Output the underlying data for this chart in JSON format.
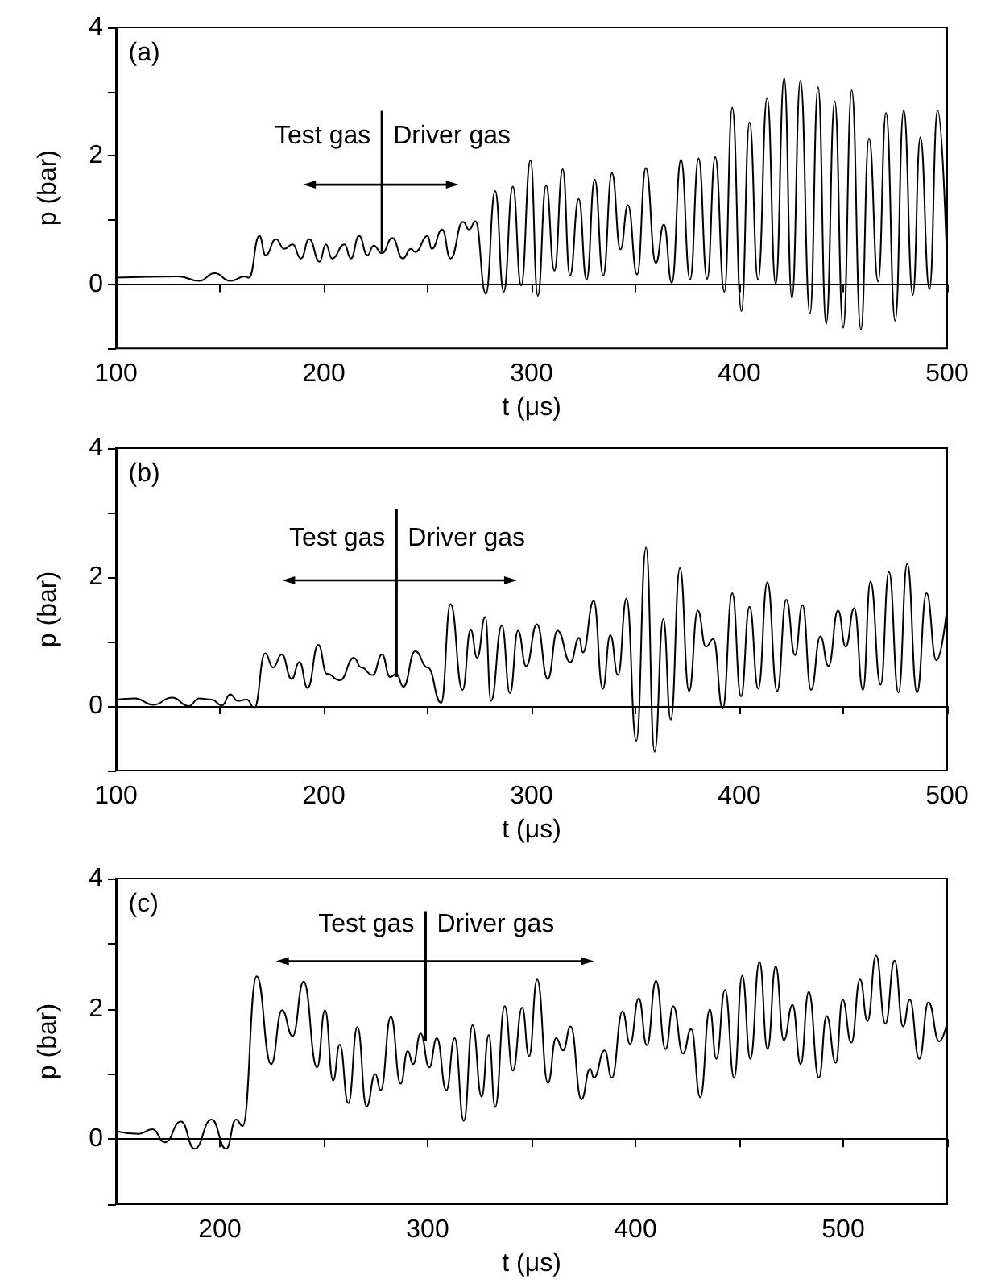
{
  "chart_data": [
    {
      "type": "line",
      "xlabel": "t (μs)",
      "ylabel": "p (bar)",
      "marker": "none",
      "annotations": [
        "(a)",
        {
          "text": "Test gas",
          "x": 228,
          "y": 0.5
        },
        {
          "text": "Driver gas",
          "x": 228,
          "y": 0.5
        }
      ],
      "xlim": [
        100,
        500
      ],
      "ylim": [
        -1,
        4
      ],
      "xticks": [
        100,
        {
          "value": 150,
          "label": null
        },
        200,
        {
          "value": 250,
          "label": null
        },
        300,
        {
          "value": 350,
          "label": null
        },
        400,
        {
          "value": 450,
          "label": null
        },
        500
      ],
      "yticks": [
        {
          "value": -1,
          "label": null
        },
        0,
        {
          "value": 1,
          "label": null
        },
        2,
        {
          "value": 3,
          "label": null
        },
        4
      ],
      "series": [
        {
          "color": "#000000",
          "x": [
            100,
            130,
            140,
            147.5,
            155,
            162,
            164,
            169,
            172,
            177,
            181,
            185,
            189,
            193,
            198,
            201,
            204,
            210,
            213,
            217,
            221,
            224,
            228,
            233,
            238,
            242,
            244,
            250,
            252,
            257,
            261,
            267,
            270,
            273,
            278,
            282.5,
            286.6,
            291,
            295,
            299.5,
            303,
            307,
            311,
            315,
            318.5,
            322.7,
            326.5,
            330.4,
            334.5,
            338.7,
            342.8,
            346.4,
            350.8,
            355,
            359.8,
            363.7,
            367.5,
            371.9,
            376.3,
            380.4,
            384.5,
            388.4,
            392.8,
            396.6,
            401,
            404.9,
            409,
            413.4,
            417.5,
            421.6,
            425.3,
            429.4,
            434,
            437.9,
            441.8,
            445.9,
            450,
            454.1,
            458.5,
            462.4,
            466.8,
            470.6,
            475,
            479.1,
            483.5,
            487.1,
            491.5,
            495.4,
            500
          ],
          "values": [
            0.1,
            0.12,
            0.05,
            0.17,
            0.05,
            0.12,
            0.1,
            0.75,
            0.45,
            0.7,
            0.55,
            0.62,
            0.4,
            0.7,
            0.35,
            0.62,
            0.4,
            0.62,
            0.4,
            0.75,
            0.45,
            0.6,
            0.48,
            0.72,
            0.4,
            0.55,
            0.5,
            0.75,
            0.55,
            0.85,
            0.4,
            0.97,
            0.85,
            0.98,
            -0.15,
            1.45,
            -0.12,
            1.52,
            -0.02,
            1.93,
            -0.18,
            1.54,
            0.21,
            1.79,
            0.13,
            1.33,
            0.07,
            1.63,
            0.13,
            1.73,
            0.54,
            1.23,
            0.15,
            1.81,
            0.33,
            0.93,
            0.02,
            1.94,
            0.07,
            1.96,
            0.08,
            1.98,
            -0.12,
            2.75,
            -0.42,
            2.52,
            0.07,
            2.9,
            0,
            3.21,
            -0.22,
            3.17,
            -0.46,
            3.07,
            -0.62,
            2.85,
            -0.68,
            3.02,
            -0.71,
            2.27,
            0.04,
            2.67,
            -0.57,
            2.71,
            -0.17,
            2.29,
            -0.08,
            2.71,
            0.25
          ]
        }
      ]
    },
    {
      "type": "line",
      "xlabel": "t (μs)",
      "ylabel": "p (bar)",
      "marker": "none",
      "annotations": [
        "(b)",
        {
          "text": "Test gas",
          "x": 235,
          "y": 0.45
        },
        {
          "text": "Driver gas",
          "x": 235,
          "y": 0.45
        }
      ],
      "xlim": [
        100,
        500
      ],
      "ylim": [
        -1,
        4
      ],
      "xticks": [
        100,
        {
          "value": 150,
          "label": null
        },
        200,
        {
          "value": 250,
          "label": null
        },
        300,
        {
          "value": 350,
          "label": null
        },
        400,
        {
          "value": 450,
          "label": null
        },
        500
      ],
      "yticks": [
        {
          "value": -1,
          "label": null
        },
        0,
        {
          "value": 1,
          "label": null
        },
        2,
        {
          "value": 3,
          "label": null
        },
        4
      ],
      "series": [
        {
          "color": "#000000",
          "x": [
            100,
            109,
            118,
            127,
            135,
            140,
            146,
            151,
            155,
            158.5,
            163,
            166.6,
            171.8,
            175.6,
            179.8,
            184.5,
            188.3,
            192.2,
            197.4,
            201.5,
            207.8,
            214.5,
            218,
            223.6,
            228,
            231.9,
            235,
            238.3,
            244,
            250,
            256.5,
            261,
            266.8,
            270.7,
            273.8,
            277.7,
            280.5,
            285.7,
            289.6,
            293.5,
            297.4,
            302.6,
            307.8,
            312.5,
            318.7,
            322.9,
            324.7,
            329.9,
            334.3,
            337.9,
            341.6,
            345.7,
            350.4,
            355.1,
            359.2,
            363.4,
            367,
            371.4,
            375.8,
            380,
            383.9,
            387.5,
            392,
            396.6,
            400.8,
            404.9,
            409.1,
            413.5,
            418.2,
            422.6,
            426.8,
            430.4,
            434.5,
            439,
            442.9,
            447.5,
            451.2,
            455.3,
            459.5,
            463.1,
            468,
            472,
            476.6,
            480.8,
            485.5,
            490.1,
            494.8,
            500
          ],
          "values": [
            0.1,
            0.12,
            0.02,
            0.13,
            0,
            0.12,
            0.1,
            0.01,
            0.18,
            0.08,
            0.1,
            -0.03,
            0.82,
            0.6,
            0.8,
            0.42,
            0.68,
            0.28,
            0.95,
            0.5,
            0.4,
            0.75,
            0.6,
            0.48,
            0.8,
            0.45,
            0.5,
            0.3,
            0.85,
            0.6,
            0.05,
            1.58,
            0.25,
            1.18,
            0.75,
            1.38,
            0.08,
            1.25,
            0.2,
            1.17,
            0.62,
            1.27,
            0.42,
            1.17,
            0.68,
            1.06,
            0.83,
            1.63,
            0.27,
            1.1,
            0.48,
            1.67,
            -0.54,
            2.46,
            -0.71,
            1.35,
            -0.21,
            2.14,
            0.23,
            1.48,
            0.92,
            1.04,
            -0.04,
            1.75,
            0.15,
            1.54,
            0.27,
            1.92,
            0.23,
            1.65,
            0.79,
            1.57,
            0.25,
            1.08,
            0.62,
            1.48,
            0.92,
            1.52,
            0.25,
            1.93,
            0.33,
            2.08,
            0.21,
            2.21,
            0.21,
            1.75,
            0.71,
            1.54
          ]
        }
      ]
    },
    {
      "type": "line",
      "xlabel": "t (μs)",
      "ylabel": "p (bar)",
      "marker": "none",
      "annotations": [
        "(c)",
        {
          "text": "Test gas",
          "x": 299,
          "y": 1.5
        },
        {
          "text": "Driver gas",
          "x": 299,
          "y": 1.5
        }
      ],
      "xlim": [
        150,
        550
      ],
      "ylim": [
        -1,
        4
      ],
      "xticks": [
        {
          "value": 150,
          "label": null
        },
        200,
        {
          "value": 250,
          "label": null
        },
        300,
        {
          "value": 350,
          "label": null
        },
        400,
        {
          "value": 450,
          "label": null
        },
        500,
        {
          "value": 550,
          "label": null
        }
      ],
      "yticks": [
        {
          "value": -1,
          "label": null
        },
        0,
        {
          "value": 1,
          "label": null
        },
        2,
        {
          "value": 3,
          "label": null
        },
        4
      ],
      "series": [
        {
          "color": "#000000",
          "x": [
            150,
            161,
            167.5,
            173.5,
            181.3,
            187.8,
            196,
            203,
            207.8,
            211,
            217.7,
            224.7,
            229.9,
            235,
            240.3,
            246.8,
            250.6,
            254.5,
            257.7,
            261.8,
            266.2,
            270.6,
            274.8,
            277.4,
            282.3,
            287,
            290.4,
            293,
            296.6,
            300.8,
            304.4,
            309,
            313,
            317.4,
            321.6,
            326,
            329.4,
            332.5,
            337.1,
            341,
            345.5,
            348.8,
            352.7,
            357.9,
            361.8,
            365.2,
            368.8,
            374,
            378.2,
            380,
            385.2,
            388.6,
            393.8,
            397.4,
            401.6,
            405.5,
            409.9,
            414.5,
            418.2,
            422.9,
            426.8,
            431.2,
            435.8,
            438.9,
            443.1,
            447.5,
            451.4,
            455.3,
            459.7,
            463.6,
            467.5,
            471.4,
            475.6,
            479.5,
            483.4,
            488.3,
            492,
            496.4,
            499.7,
            503.9,
            508.1,
            511.7,
            515.8,
            520.3,
            524.7,
            528.8,
            532,
            536.6,
            541,
            546.2,
            550
          ],
          "values": [
            0.12,
            0.08,
            0.15,
            -0.05,
            0.27,
            -0.15,
            0.3,
            -0.15,
            0.3,
            0.2,
            2.5,
            1.15,
            1.98,
            1.58,
            2.42,
            1.1,
            1.98,
            0.9,
            1.45,
            0.55,
            1.72,
            0.5,
            1,
            0.75,
            1.88,
            0.85,
            1.35,
            1.15,
            1.62,
            1.1,
            1.55,
            0.75,
            1.55,
            0.28,
            1.75,
            0.65,
            1.6,
            0.49,
            2.04,
            1.05,
            2.02,
            1.27,
            2.45,
            0.86,
            1.55,
            1.36,
            1.73,
            0.61,
            1.08,
            0.94,
            1.36,
            0.94,
            1.96,
            1.46,
            2.16,
            1.44,
            2.43,
            1.38,
            2.04,
            1.31,
            1.69,
            0.64,
            1.99,
            1.23,
            2.29,
            0.94,
            2.51,
            1.23,
            2.72,
            1.38,
            2.65,
            1.52,
            2.06,
            1.15,
            2.26,
            0.94,
            1.89,
            1.17,
            2.14,
            1.48,
            2.45,
            1.81,
            2.82,
            1.77,
            2.74,
            1.73,
            2.14,
            1.23,
            2.1,
            1.5,
            1.79
          ]
        }
      ]
    }
  ]
}
